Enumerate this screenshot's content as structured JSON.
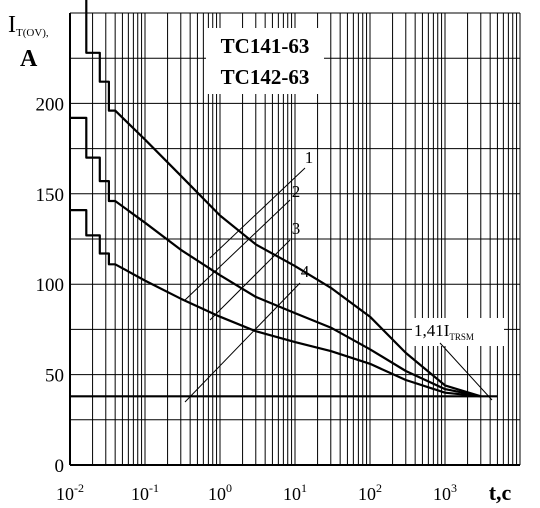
{
  "chart_data": {
    "type": "line",
    "x_scale": "log",
    "xlim": [
      0.01,
      10000
    ],
    "ylim": [
      0,
      250
    ],
    "grid": true,
    "ylabel": {
      "main": "I",
      "sub": "T(OV),",
      "unit": "A"
    },
    "xlabel": "t,c",
    "title_lines": [
      "TC141-63",
      "TC142-63"
    ],
    "y_ticks": [
      0,
      50,
      100,
      150,
      200
    ],
    "x_ticks": [
      {
        "value": 0.01,
        "base": "10",
        "exp": "-2"
      },
      {
        "value": 0.1,
        "base": "10",
        "exp": "-1"
      },
      {
        "value": 1,
        "base": "10",
        "exp": "0"
      },
      {
        "value": 10,
        "base": "10",
        "exp": "1"
      },
      {
        "value": 100,
        "base": "10",
        "exp": "2"
      },
      {
        "value": 1000,
        "base": "10",
        "exp": "3"
      }
    ],
    "series": [
      {
        "values": [
          [
            0.01,
            258
          ],
          [
            0.0165,
            258
          ],
          [
            0.0165,
            228
          ],
          [
            0.025,
            228
          ],
          [
            0.025,
            212
          ],
          [
            0.033,
            212
          ],
          [
            0.033,
            196
          ],
          [
            0.04,
            196
          ],
          [
            0.1,
            180
          ],
          [
            0.3,
            160
          ],
          [
            1,
            138
          ],
          [
            3,
            122
          ],
          [
            10,
            110
          ],
          [
            30,
            98
          ],
          [
            100,
            82
          ],
          [
            300,
            62
          ],
          [
            1000,
            44
          ],
          [
            3000,
            38
          ]
        ]
      },
      {
        "values": [
          [
            0.01,
            192
          ],
          [
            0.0165,
            192
          ],
          [
            0.0165,
            170
          ],
          [
            0.025,
            170
          ],
          [
            0.025,
            157
          ],
          [
            0.033,
            157
          ],
          [
            0.033,
            146
          ],
          [
            0.04,
            146
          ],
          [
            0.1,
            134
          ],
          [
            0.3,
            119
          ],
          [
            1,
            105
          ],
          [
            3,
            93
          ],
          [
            10,
            84
          ],
          [
            30,
            76
          ],
          [
            100,
            64
          ],
          [
            300,
            52
          ],
          [
            1000,
            42
          ],
          [
            3000,
            38
          ]
        ]
      },
      {
        "values": [
          [
            0.01,
            141
          ],
          [
            0.0165,
            141
          ],
          [
            0.0165,
            127
          ],
          [
            0.025,
            127
          ],
          [
            0.025,
            117
          ],
          [
            0.033,
            117
          ],
          [
            0.033,
            111
          ],
          [
            0.04,
            111
          ],
          [
            0.1,
            102
          ],
          [
            0.3,
            92
          ],
          [
            1,
            82
          ],
          [
            3,
            74
          ],
          [
            10,
            68
          ],
          [
            30,
            63
          ],
          [
            100,
            56
          ],
          [
            300,
            47
          ],
          [
            1000,
            40
          ],
          [
            3000,
            38
          ]
        ]
      },
      {
        "values": [
          [
            0.01,
            38
          ],
          [
            5000,
            38
          ]
        ]
      }
    ],
    "annotations": {
      "curve_labels": [
        "1",
        "2",
        "3",
        "4"
      ],
      "reference_label": {
        "main": "1,41I",
        "sub": "TRSM"
      }
    }
  }
}
